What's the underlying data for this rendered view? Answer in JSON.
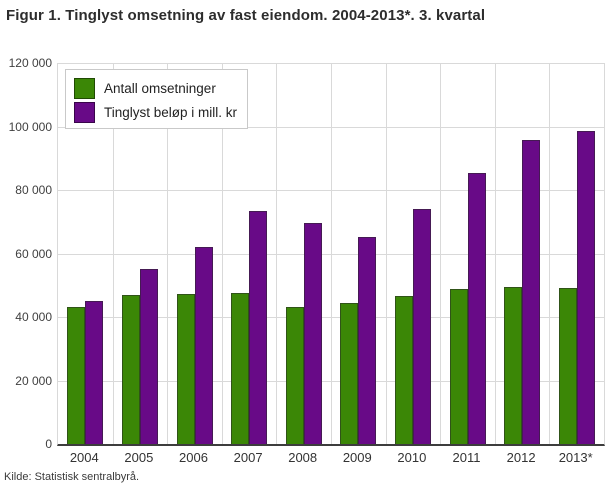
{
  "title": "Figur 1. Tinglyst omsetning av fast eiendom. 2004-2013*. 3. kvartal",
  "source": "Kilde: Statistisk sentralbyrå.",
  "chart_data": {
    "type": "bar",
    "title": "Figur 1. Tinglyst omsetning av fast eiendom. 2004-2013*. 3. kvartal",
    "categories": [
      "2004",
      "2005",
      "2006",
      "2007",
      "2008",
      "2009",
      "2010",
      "2011",
      "2012",
      "2013*"
    ],
    "series": [
      {
        "name": "Antall omsetninger",
        "color": "#3b8706",
        "values": [
          43200,
          46900,
          47400,
          47700,
          43100,
          44400,
          46700,
          48700,
          49400,
          49000
        ]
      },
      {
        "name": "Tinglyst beløp i mill. kr",
        "color": "#680a87",
        "values": [
          45100,
          55100,
          62200,
          73500,
          69600,
          65300,
          73900,
          85300,
          95800,
          98600
        ]
      }
    ],
    "xlabel": "",
    "ylabel": "",
    "ylim": [
      0,
      120000
    ],
    "ytick_step": 20000,
    "ytick_labels": [
      "0",
      "20 000",
      "40 000",
      "60 000",
      "80 000",
      "100 000",
      "120 000"
    ],
    "grid": true,
    "legend_position": "upper-left-inside"
  }
}
